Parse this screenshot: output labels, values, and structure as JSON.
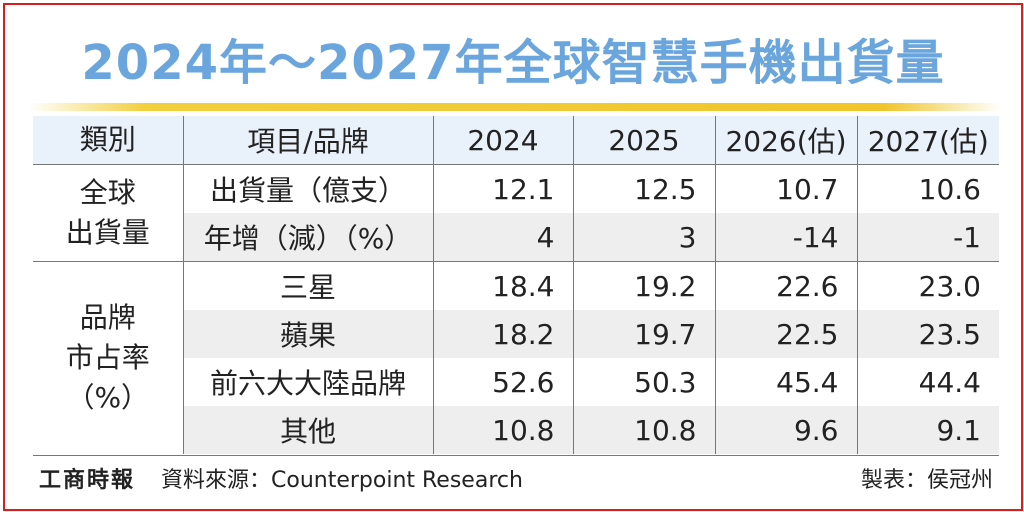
{
  "title": "2024年～2027年全球智慧手機出貨量",
  "headers": [
    "類別",
    "項目/品牌",
    "2024",
    "2025",
    "2026(估)",
    "2027(估)"
  ],
  "groups": [
    {
      "category_lines": [
        "全球",
        "出貨量"
      ],
      "rows": [
        {
          "item": "出貨量（億支）",
          "values": [
            "12.1",
            "12.5",
            "10.7",
            "10.6"
          ]
        },
        {
          "item": "年增（減）（%）",
          "values": [
            "4",
            "3",
            "-14",
            "-1"
          ]
        }
      ]
    },
    {
      "category_lines": [
        "品牌",
        "市占率",
        "（%）"
      ],
      "rows": [
        {
          "item": "三星",
          "values": [
            "18.4",
            "19.2",
            "22.6",
            "23.0"
          ]
        },
        {
          "item": "蘋果",
          "values": [
            "18.2",
            "19.7",
            "22.5",
            "23.5"
          ]
        },
        {
          "item": "前六大大陸品牌",
          "values": [
            "52.6",
            "50.3",
            "45.4",
            "44.4"
          ]
        },
        {
          "item": "其他",
          "values": [
            "10.8",
            "10.8",
            "9.6",
            "9.1"
          ]
        }
      ]
    }
  ],
  "footer": {
    "brand": "工商時報",
    "source": "資料來源：Counterpoint Research",
    "maker": "製表：侯冠州"
  },
  "colors": {
    "title": "#6aa6dd",
    "frame": "#d42020",
    "header_bg": "#e9f2fb",
    "stripe_bg": "#eeeeee",
    "rule": "#f0c52a"
  }
}
